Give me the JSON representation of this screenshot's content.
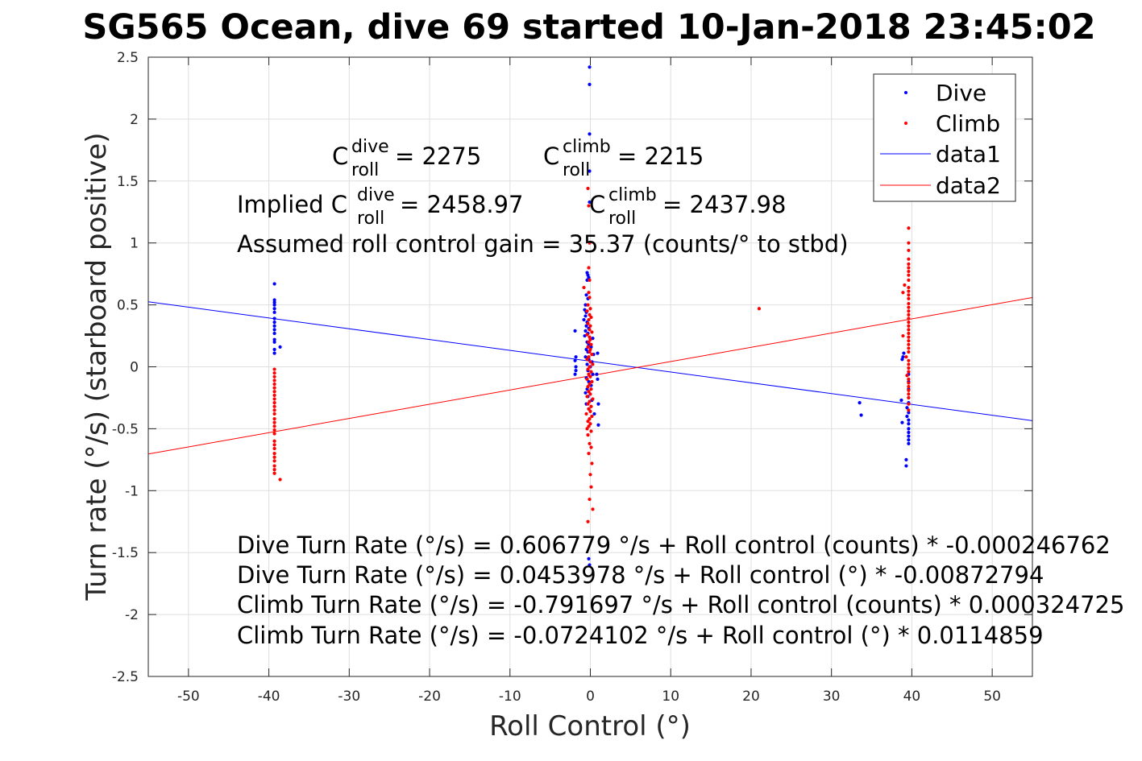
{
  "chart_data": {
    "type": "scatter",
    "title": "SG565 Ocean, dive 69 started 10-Jan-2018 23:45:02",
    "xlabel": "Roll Control (°)",
    "ylabel": "Turn rate (°/s) (starboard positive)",
    "xlim": [
      -55,
      55
    ],
    "ylim": [
      -2.5,
      2.5
    ],
    "xticks": [
      -50,
      -40,
      -30,
      -20,
      -10,
      0,
      10,
      20,
      30,
      40,
      50
    ],
    "yticks": [
      2.5,
      2,
      1.5,
      1,
      0.5,
      0,
      -0.5,
      -1,
      -1.5,
      -2,
      -2.5
    ],
    "grid": true,
    "legend_position": "top-right",
    "legend": [
      "Dive",
      "Climb",
      "data1",
      "data2"
    ],
    "colors": {
      "dive": "#0000ff",
      "climb": "#ff0000"
    },
    "series": [
      {
        "name": "Dive",
        "kind": "points",
        "color": "#0000ff",
        "points": [
          [
            -39.3,
            0.67
          ],
          [
            -39.3,
            0.54
          ],
          [
            -39.3,
            0.52
          ],
          [
            -39.3,
            0.5
          ],
          [
            -39.3,
            0.47
          ],
          [
            -39.3,
            0.44
          ],
          [
            -39.3,
            0.39
          ],
          [
            -39.3,
            0.36
          ],
          [
            -39.3,
            0.33
          ],
          [
            -39.3,
            0.3
          ],
          [
            -39.3,
            0.27
          ],
          [
            -39.3,
            0.22
          ],
          [
            -39.3,
            0.2
          ],
          [
            -39.3,
            0.14
          ],
          [
            -39.3,
            0.11
          ],
          [
            -38.6,
            0.16
          ],
          [
            -0.1,
            2.42
          ],
          [
            -0.1,
            2.28
          ],
          [
            -0.1,
            1.88
          ],
          [
            -0.1,
            1.58
          ],
          [
            -0.1,
            1.33
          ],
          [
            -0.4,
            0.76
          ],
          [
            -0.3,
            0.74
          ],
          [
            -0.2,
            0.72
          ],
          [
            -0.4,
            0.7
          ],
          [
            -0.5,
            0.58
          ],
          [
            -0.3,
            0.55
          ],
          [
            -0.6,
            0.5
          ],
          [
            -0.7,
            0.46
          ],
          [
            -0.5,
            0.44
          ],
          [
            -0.6,
            0.41
          ],
          [
            -0.8,
            0.38
          ],
          [
            -0.4,
            0.36
          ],
          [
            -0.5,
            0.33
          ],
          [
            -0.2,
            0.31
          ],
          [
            -0.6,
            0.29
          ],
          [
            -0.3,
            0.27
          ],
          [
            -0.7,
            0.25
          ],
          [
            0.3,
            0.23
          ],
          [
            -0.4,
            0.2
          ],
          [
            -0.2,
            0.18
          ],
          [
            0.1,
            0.16
          ],
          [
            -0.5,
            0.14
          ],
          [
            -0.3,
            0.12
          ],
          [
            0.4,
            0.1
          ],
          [
            -0.6,
            0.08
          ],
          [
            -0.2,
            0.06
          ],
          [
            0.2,
            0.04
          ],
          [
            -0.4,
            0.02
          ],
          [
            0.0,
            0.0
          ],
          [
            -0.3,
            -0.03
          ],
          [
            0.3,
            -0.06
          ],
          [
            -0.5,
            -0.09
          ],
          [
            -0.2,
            -0.12
          ],
          [
            0.1,
            -0.15
          ],
          [
            -0.4,
            -0.18
          ],
          [
            -0.6,
            -0.21
          ],
          [
            -0.3,
            -0.24
          ],
          [
            0.2,
            -0.27
          ],
          [
            -0.5,
            -0.3
          ],
          [
            -0.2,
            -0.34
          ],
          [
            0.5,
            -0.38
          ],
          [
            -1.9,
            0.29
          ],
          [
            -1.8,
            0.08
          ],
          [
            -1.9,
            0.05
          ],
          [
            -1.8,
            0.0
          ],
          [
            -1.8,
            -0.03
          ],
          [
            -1.9,
            -0.06
          ],
          [
            0.9,
            0.11
          ],
          [
            0.8,
            -0.06
          ],
          [
            0.9,
            -0.1
          ],
          [
            1.0,
            -0.3
          ],
          [
            1.0,
            -0.47
          ],
          [
            -0.2,
            -1.55
          ],
          [
            -0.1,
            -1.6
          ],
          [
            33.5,
            -0.29
          ],
          [
            33.7,
            -0.39
          ],
          [
            39.0,
            0.11
          ],
          [
            38.9,
            0.08
          ],
          [
            38.8,
            0.06
          ],
          [
            39.6,
            -0.06
          ],
          [
            39.6,
            -0.12
          ],
          [
            39.6,
            -0.18
          ],
          [
            39.6,
            -0.25
          ],
          [
            39.6,
            -0.29
          ],
          [
            39.4,
            -0.33
          ],
          [
            39.6,
            -0.37
          ],
          [
            39.4,
            -0.4
          ],
          [
            39.6,
            -0.43
          ],
          [
            39.6,
            -0.46
          ],
          [
            39.6,
            -0.5
          ],
          [
            39.6,
            -0.53
          ],
          [
            39.6,
            -0.56
          ],
          [
            39.6,
            -0.59
          ],
          [
            39.6,
            -0.62
          ],
          [
            39.3,
            -0.75
          ],
          [
            39.3,
            -0.8
          ],
          [
            38.8,
            -0.45
          ],
          [
            38.7,
            -0.27
          ]
        ]
      },
      {
        "name": "Climb",
        "kind": "points",
        "color": "#ff0000",
        "points": [
          [
            -39.3,
            -0.02
          ],
          [
            -39.3,
            -0.05
          ],
          [
            -39.3,
            -0.08
          ],
          [
            -39.3,
            -0.11
          ],
          [
            -39.3,
            -0.14
          ],
          [
            -39.3,
            -0.17
          ],
          [
            -39.3,
            -0.2
          ],
          [
            -39.3,
            -0.23
          ],
          [
            -39.3,
            -0.26
          ],
          [
            -39.3,
            -0.29
          ],
          [
            -39.3,
            -0.32
          ],
          [
            -39.3,
            -0.35
          ],
          [
            -39.3,
            -0.38
          ],
          [
            -39.3,
            -0.42
          ],
          [
            -39.3,
            -0.45
          ],
          [
            -39.3,
            -0.48
          ],
          [
            -39.3,
            -0.51
          ],
          [
            -39.3,
            -0.54
          ],
          [
            -39.3,
            -0.6
          ],
          [
            -39.3,
            -0.63
          ],
          [
            -39.3,
            -0.66
          ],
          [
            -39.3,
            -0.7
          ],
          [
            -39.3,
            -0.73
          ],
          [
            -39.3,
            -0.76
          ],
          [
            -39.3,
            -0.8
          ],
          [
            -39.3,
            -0.83
          ],
          [
            -39.3,
            -0.86
          ],
          [
            -38.6,
            -0.91
          ],
          [
            -0.3,
            1.44
          ],
          [
            -0.2,
            1.3
          ],
          [
            -0.1,
            1.0
          ],
          [
            -0.2,
            0.8
          ],
          [
            -0.1,
            0.7
          ],
          [
            -0.2,
            0.6
          ],
          [
            -0.8,
            0.64
          ],
          [
            -0.1,
            0.56
          ],
          [
            -0.3,
            0.5
          ],
          [
            0.0,
            0.47
          ],
          [
            -0.4,
            0.45
          ],
          [
            -0.1,
            0.42
          ],
          [
            0.1,
            0.4
          ],
          [
            -0.2,
            0.38
          ],
          [
            -0.3,
            0.35
          ],
          [
            0.0,
            0.33
          ],
          [
            -0.1,
            0.3
          ],
          [
            0.2,
            0.28
          ],
          [
            -0.4,
            0.26
          ],
          [
            -0.1,
            0.24
          ],
          [
            0.0,
            0.22
          ],
          [
            -0.2,
            0.2
          ],
          [
            0.1,
            0.18
          ],
          [
            -0.3,
            0.16
          ],
          [
            0.0,
            0.14
          ],
          [
            -0.1,
            0.12
          ],
          [
            0.2,
            0.1
          ],
          [
            -0.2,
            0.08
          ],
          [
            -0.4,
            0.06
          ],
          [
            0.0,
            0.04
          ],
          [
            0.3,
            0.02
          ],
          [
            -0.1,
            0.0
          ],
          [
            -0.3,
            -0.02
          ],
          [
            0.1,
            -0.04
          ],
          [
            -0.2,
            -0.06
          ],
          [
            0.0,
            -0.08
          ],
          [
            -0.4,
            -0.1
          ],
          [
            0.2,
            -0.12
          ],
          [
            -0.1,
            -0.14
          ],
          [
            -0.3,
            -0.16
          ],
          [
            0.1,
            -0.18
          ],
          [
            -0.2,
            -0.2
          ],
          [
            0.0,
            -0.22
          ],
          [
            -0.4,
            -0.24
          ],
          [
            0.3,
            -0.26
          ],
          [
            -0.1,
            -0.28
          ],
          [
            -0.3,
            -0.3
          ],
          [
            0.1,
            -0.32
          ],
          [
            -0.2,
            -0.34
          ],
          [
            0.0,
            -0.36
          ],
          [
            -0.5,
            -0.38
          ],
          [
            0.2,
            -0.4
          ],
          [
            -0.1,
            -0.42
          ],
          [
            -0.3,
            -0.44
          ],
          [
            0.0,
            -0.46
          ],
          [
            -0.2,
            -0.48
          ],
          [
            -0.4,
            -0.5
          ],
          [
            0.1,
            -0.52
          ],
          [
            -0.3,
            -0.55
          ],
          [
            -0.1,
            -0.62
          ],
          [
            0.1,
            -0.65
          ],
          [
            -0.2,
            -0.7
          ],
          [
            0.2,
            -0.78
          ],
          [
            0.0,
            -0.87
          ],
          [
            0.1,
            -0.97
          ],
          [
            -0.1,
            -1.07
          ],
          [
            0.3,
            -1.15
          ],
          [
            -0.3,
            -1.25
          ],
          [
            21.0,
            0.47
          ],
          [
            39.6,
            1.12
          ],
          [
            39.6,
            1.0
          ],
          [
            39.6,
            0.94
          ],
          [
            39.6,
            0.87
          ],
          [
            39.6,
            0.83
          ],
          [
            39.6,
            0.8
          ],
          [
            39.6,
            0.77
          ],
          [
            39.6,
            0.74
          ],
          [
            39.6,
            0.7
          ],
          [
            39.1,
            0.66
          ],
          [
            39.6,
            0.64
          ],
          [
            39.6,
            0.61
          ],
          [
            39.6,
            0.58
          ],
          [
            39.6,
            0.55
          ],
          [
            39.6,
            0.51
          ],
          [
            39.6,
            0.48
          ],
          [
            39.6,
            0.45
          ],
          [
            39.6,
            0.42
          ],
          [
            39.6,
            0.39
          ],
          [
            39.6,
            0.36
          ],
          [
            39.6,
            0.33
          ],
          [
            39.6,
            0.3
          ],
          [
            39.6,
            0.27
          ],
          [
            39.6,
            0.24
          ],
          [
            39.6,
            0.21
          ],
          [
            39.6,
            0.18
          ],
          [
            39.6,
            0.15
          ],
          [
            39.6,
            0.12
          ],
          [
            39.3,
            0.08
          ],
          [
            39.6,
            0.05
          ],
          [
            39.6,
            0.02
          ],
          [
            39.6,
            -0.01
          ],
          [
            39.6,
            -0.04
          ],
          [
            39.4,
            -0.07
          ],
          [
            39.6,
            -0.1
          ],
          [
            39.6,
            -0.13
          ],
          [
            39.6,
            -0.16
          ],
          [
            39.6,
            -0.19
          ],
          [
            39.6,
            -0.22
          ],
          [
            39.6,
            -0.25
          ],
          [
            39.6,
            -0.3
          ],
          [
            39.6,
            -0.35
          ],
          [
            38.9,
            0.25
          ],
          [
            38.9,
            0.6
          ]
        ]
      },
      {
        "name": "data1",
        "kind": "line",
        "color": "#0000ff",
        "points": [
          [
            -55,
            0.5254
          ],
          [
            55,
            -0.4346
          ]
        ]
      },
      {
        "name": "data2",
        "kind": "line",
        "color": "#ff0000",
        "points": [
          [
            -55,
            -0.7041
          ],
          [
            55,
            0.5594
          ]
        ]
      }
    ],
    "annotations": {
      "c_dive_base": "C",
      "c_dive_sup": "dive",
      "c_dive_sub": "roll",
      "c_dive_value": " = 2275",
      "c_climb_base": "C",
      "c_climb_sup": "climb",
      "c_climb_sub": "roll",
      "c_climb_value": " = 2215",
      "implied_prefix": "Implied C",
      "implied_dive_sup": "dive",
      "implied_dive_sub": "roll",
      "implied_dive_value": " = 2458.97",
      "implied_climb_base": "C",
      "implied_climb_sup": "climb",
      "implied_climb_sub": "roll",
      "implied_climb_value": " = 2437.98",
      "gain": "Assumed roll control gain = 35.37 (counts/° to stbd)",
      "eq1": "Dive Turn Rate (°/s) = 0.606779 °/s + Roll control (counts) * -0.000246762",
      "eq2": "Dive Turn Rate (°/s) = 0.0453978 °/s + Roll control (°) * -0.00872794",
      "eq3": "Climb Turn Rate (°/s) = -0.791697 °/s + Roll control (counts) * 0.000324725",
      "eq4": "Climb Turn Rate (°/s) = -0.0724102 °/s + Roll control (°) * 0.0114859"
    }
  }
}
